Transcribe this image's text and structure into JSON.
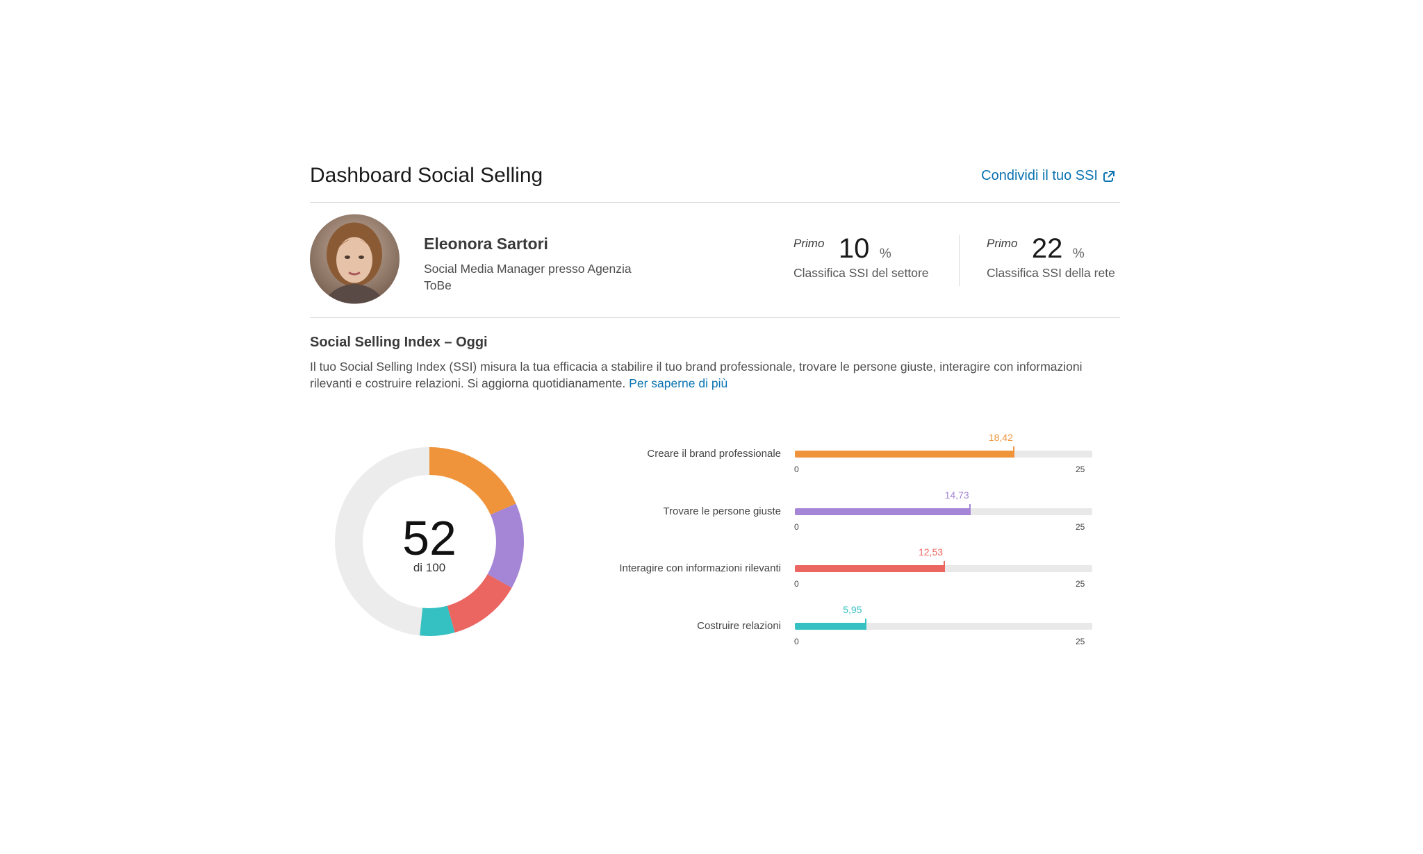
{
  "header": {
    "title": "Dashboard Social Selling",
    "share_label": "Condividi il tuo SSI"
  },
  "profile": {
    "name": "Eleonora Sartori",
    "job_title": "Social Media Manager presso Agenzia ToBe"
  },
  "ranks": [
    {
      "prefix": "Primo",
      "value": "10",
      "unit": "%",
      "caption": "Classifica SSI del settore"
    },
    {
      "prefix": "Primo",
      "value": "22",
      "unit": "%",
      "caption": "Classifica SSI della rete"
    }
  ],
  "section": {
    "title": "Social Selling Index – Oggi",
    "description": "Il tuo Social Selling Index (SSI) misura la tua efficacia a stabilire il tuo brand professionale, trovare le persone giuste, interagire con informazioni rilevanti e costruire relazioni. Si aggiorna quotidianamente.",
    "learn_more": "Per saperne di più"
  },
  "score": {
    "value": "52",
    "out_of": "di 100"
  },
  "chart_data": {
    "type": "bar",
    "categories": [
      "Creare il brand professionale",
      "Trovare le persone giuste",
      "Interagire con informazioni rilevanti",
      "Costruire relazioni"
    ],
    "values": [
      18.42,
      14.73,
      12.53,
      5.95
    ],
    "value_labels": [
      "18,42",
      "14,73",
      "12,53",
      "5,95"
    ],
    "colors": [
      "#f0943b",
      "#a585d6",
      "#eb6561",
      "#35c0c2"
    ],
    "xlim": [
      0,
      25
    ],
    "tick_labels": [
      "0",
      "25"
    ],
    "total": 52,
    "max_total": 100
  }
}
